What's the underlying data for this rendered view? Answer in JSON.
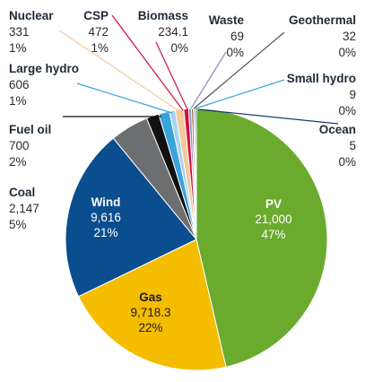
{
  "chart_data": {
    "type": "pie",
    "title": "",
    "slices": [
      {
        "name": "PV",
        "value": 21000,
        "value_label": "21,000",
        "pct_label": "47%",
        "color": "#6aab2e"
      },
      {
        "name": "Gas",
        "value": 9718.3,
        "value_label": "9,718.3",
        "pct_label": "22%",
        "color": "#f5bd00"
      },
      {
        "name": "Wind",
        "value": 9616,
        "value_label": "9,616",
        "pct_label": "21%",
        "color": "#0a4e8f"
      },
      {
        "name": "Coal",
        "value": 2147,
        "value_label": "2,147",
        "pct_label": "5%",
        "color": "#6d6e70"
      },
      {
        "name": "Fuel oil",
        "value": 700,
        "value_label": "700",
        "pct_label": "2%",
        "color": "#111111"
      },
      {
        "name": "Large hydro",
        "value": 606,
        "value_label": "606",
        "pct_label": "1%",
        "color": "#3aa3dc"
      },
      {
        "name": "Nuclear",
        "value": 331,
        "value_label": "331",
        "pct_label": "1%",
        "color": "#a9d4ef"
      },
      {
        "name": "CSP",
        "value": 472,
        "value_label": "472",
        "pct_label": "1%",
        "color": "#f4c89a"
      },
      {
        "name": "Biomass",
        "value": 234.1,
        "value_label": "234.1",
        "pct_label": "0%",
        "color": "#d0123e"
      },
      {
        "name": "Waste",
        "value": 69,
        "value_label": "69",
        "pct_label": "0%",
        "color": "#8a8fc0"
      },
      {
        "name": "Geothermal",
        "value": 32,
        "value_label": "32",
        "pct_label": "0%",
        "color": "#b05a2a"
      },
      {
        "name": "Small hydro",
        "value": 9,
        "value_label": "9",
        "pct_label": "0%",
        "color": "#5aa0d0"
      },
      {
        "name": "Ocean",
        "value": 5,
        "value_label": "5",
        "pct_label": "0%",
        "color": "#1a3a6a"
      }
    ]
  }
}
